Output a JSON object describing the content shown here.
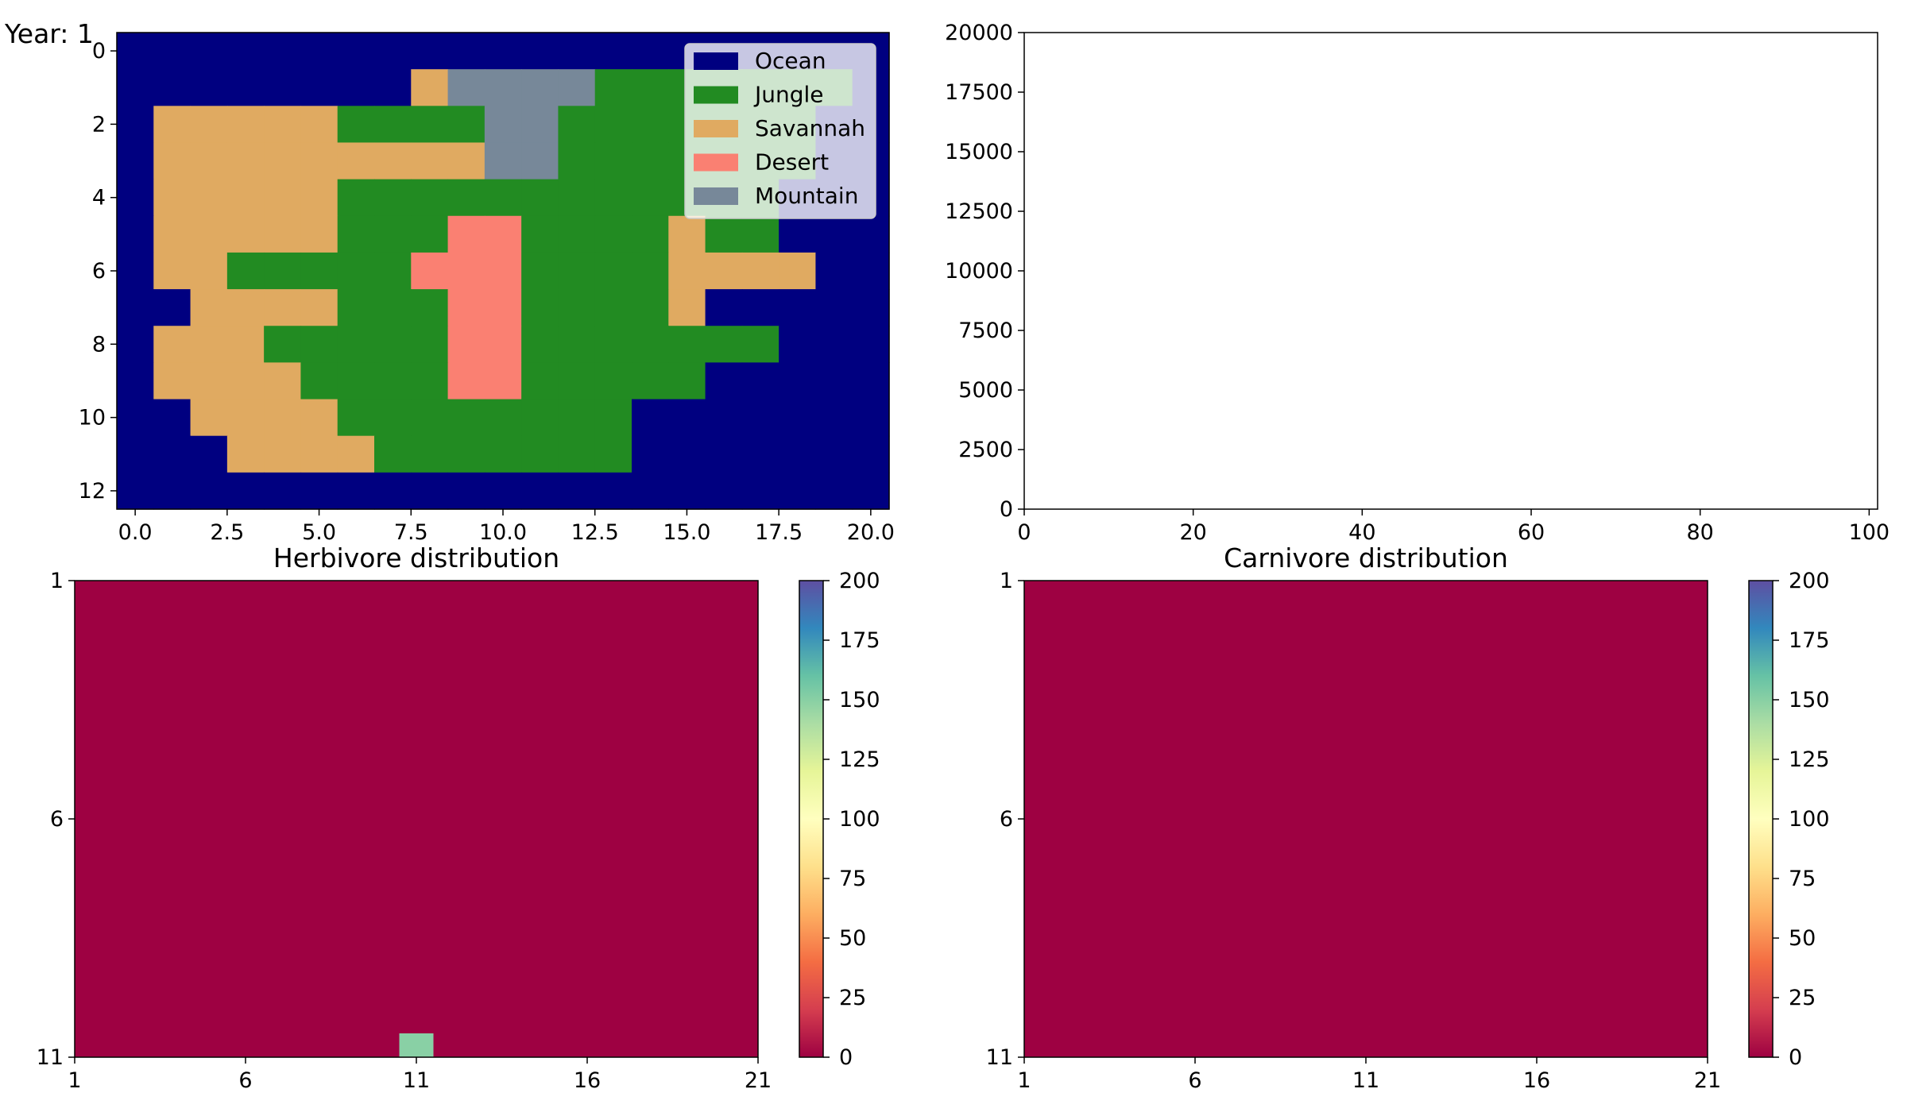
{
  "year_label": "Year: 1",
  "chart_data": [
    {
      "type": "heatmap",
      "role": "island-map",
      "title": "",
      "xlabel": "",
      "ylabel": "",
      "xlim": [
        -0.5,
        20.5
      ],
      "ylim": [
        12.5,
        -0.5
      ],
      "xticks": [
        "0.0",
        "2.5",
        "5.0",
        "7.5",
        "10.0",
        "12.5",
        "15.0",
        "17.5",
        "20.0"
      ],
      "yticks": [
        "0",
        "2",
        "4",
        "6",
        "8",
        "10",
        "12"
      ],
      "legend_position": "top-right",
      "legend": [
        {
          "key": "W",
          "label": "Ocean",
          "color": "#000080"
        },
        {
          "key": "J",
          "label": "Jungle",
          "color": "#228b22"
        },
        {
          "key": "S",
          "label": "Savannah",
          "color": "#e0aa61"
        },
        {
          "key": "D",
          "label": "Desert",
          "color": "#fa8072"
        },
        {
          "key": "H",
          "label": "Mountain",
          "color": "#778899"
        }
      ],
      "grid": [
        "WWWWWWWWWWWWWWWWWWWWW",
        "WWWWWWWWSHHHHJJJJJJJW",
        "WSSSSSJJJJHHJJJJJJJWW",
        "WSSSSSSSSSHHJJJJJJJWW",
        "WSSSSSJJJJJJJJJJJJWWW",
        "WSSSSSJJJDDJJJJSJJWWW",
        "WSSJJJJJDDDJJJJSSSSWW",
        "WWSSSSJJJDDJJJJSWWWWW",
        "WSSSJJJJJDDJJJJJJJWWW",
        "WSSSSJJJJDDJJJJJWWWWW",
        "WWSSSSJJJJJJJJWWWWWWW",
        "WWWSSSSJJJJJJJWWWWWWW",
        "WWWWWWWWWWWWWWWWWWWWW"
      ]
    },
    {
      "type": "line",
      "role": "population-count",
      "title": "",
      "xlabel": "",
      "ylabel": "",
      "xlim": [
        0,
        101
      ],
      "ylim": [
        0,
        20000
      ],
      "xticks": [
        "0",
        "20",
        "40",
        "60",
        "80",
        "100"
      ],
      "yticks": [
        "0",
        "2500",
        "5000",
        "7500",
        "10000",
        "12500",
        "15000",
        "17500",
        "20000"
      ],
      "series": []
    },
    {
      "type": "heatmap",
      "role": "herbivore-distribution",
      "title": "Herbivore distribution",
      "xlabel": "",
      "ylabel": "",
      "rows": 11,
      "cols": 21,
      "default_value": 0,
      "nonzero_cells": [
        {
          "row": 11,
          "col": 11,
          "value": 150
        }
      ],
      "xticks": [
        "1",
        "6",
        "11",
        "16",
        "21"
      ],
      "yticks": [
        "1",
        "6",
        "11"
      ],
      "colorbar": {
        "min": 0,
        "max": 200,
        "ticks": [
          "0",
          "25",
          "50",
          "75",
          "100",
          "125",
          "150",
          "175",
          "200"
        ],
        "colormap": "Spectral"
      }
    },
    {
      "type": "heatmap",
      "role": "carnivore-distribution",
      "title": "Carnivore distribution",
      "xlabel": "",
      "ylabel": "",
      "rows": 11,
      "cols": 21,
      "default_value": 0,
      "nonzero_cells": [],
      "xticks": [
        "1",
        "6",
        "11",
        "16",
        "21"
      ],
      "yticks": [
        "1",
        "6",
        "11"
      ],
      "colorbar": {
        "min": 0,
        "max": 200,
        "ticks": [
          "0",
          "25",
          "50",
          "75",
          "100",
          "125",
          "150",
          "175",
          "200"
        ],
        "colormap": "Spectral"
      }
    }
  ]
}
